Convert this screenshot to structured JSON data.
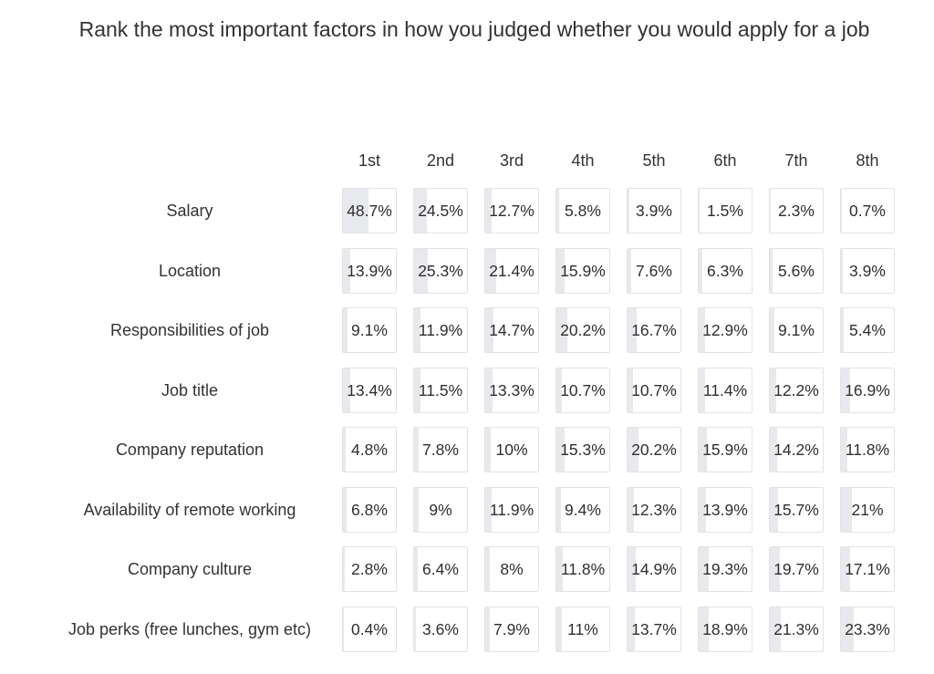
{
  "title": "Rank the most important factors in how you judged whether you would apply for a job",
  "chart_data": {
    "type": "table",
    "title": "Rank the most important factors in how you judged whether you would apply for a job",
    "columns": [
      "1st",
      "2nd",
      "3rd",
      "4th",
      "5th",
      "6th",
      "7th",
      "8th"
    ],
    "rows": [
      {
        "label": "Salary",
        "values": [
          "48.7%",
          "24.5%",
          "12.7%",
          "5.8%",
          "3.9%",
          "1.5%",
          "2.3%",
          "0.7%"
        ]
      },
      {
        "label": "Location",
        "values": [
          "13.9%",
          "25.3%",
          "21.4%",
          "15.9%",
          "7.6%",
          "6.3%",
          "5.6%",
          "3.9%"
        ]
      },
      {
        "label": "Responsibilities of job",
        "values": [
          "9.1%",
          "11.9%",
          "14.7%",
          "20.2%",
          "16.7%",
          "12.9%",
          "9.1%",
          "5.4%"
        ]
      },
      {
        "label": "Job title",
        "values": [
          "13.4%",
          "11.5%",
          "13.3%",
          "10.7%",
          "10.7%",
          "11.4%",
          "12.2%",
          "16.9%"
        ]
      },
      {
        "label": "Company reputation",
        "values": [
          "4.8%",
          "7.8%",
          "10%",
          "15.3%",
          "20.2%",
          "15.9%",
          "14.2%",
          "11.8%"
        ]
      },
      {
        "label": "Availability of remote working",
        "values": [
          "6.8%",
          "9%",
          "11.9%",
          "9.4%",
          "12.3%",
          "13.9%",
          "15.7%",
          "21%"
        ]
      },
      {
        "label": "Company culture",
        "values": [
          "2.8%",
          "6.4%",
          "8%",
          "11.8%",
          "14.9%",
          "19.3%",
          "19.7%",
          "17.1%"
        ]
      },
      {
        "label": "Job perks (free lunches, gym etc)",
        "values": [
          "0.4%",
          "3.6%",
          "7.9%",
          "11%",
          "13.7%",
          "18.9%",
          "21.3%",
          "23.3%"
        ]
      }
    ],
    "colors": {
      "bar_fill": "#e7e9ed",
      "cell_border": "#e3e3e3",
      "text": "#2f2f2f"
    }
  }
}
